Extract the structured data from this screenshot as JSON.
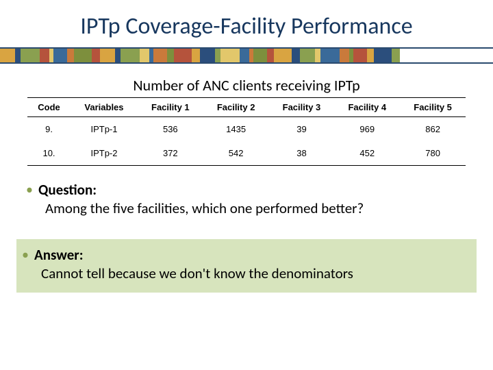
{
  "title": "IPTp Coverage-Facility Performance",
  "stripe": {
    "border_color": "#2a4a6e",
    "colors": [
      "#d9a441",
      "#2b4e7c",
      "#8aa050",
      "#b5533c",
      "#e2c76b",
      "#3a6a99",
      "#c97a3b",
      "#7d8f3d",
      "#b5533c",
      "#d9a441",
      "#2b4e7c",
      "#8aa050",
      "#e2c76b",
      "#3a6a99",
      "#c97a3b",
      "#7d8f3d",
      "#b5533c",
      "#d9a441",
      "#2b4e7c",
      "#8aa050",
      "#e2c76b",
      "#3a6a99",
      "#c97a3b",
      "#7d8f3d",
      "#b5533c",
      "#d9a441",
      "#2b4e7c",
      "#8aa050",
      "#e2c76b",
      "#3a6a99",
      "#c97a3b",
      "#7d8f3d",
      "#b5533c",
      "#d9a441",
      "#2b4e7c",
      "#8aa050"
    ],
    "widths": [
      22,
      8,
      28,
      14,
      6,
      20,
      10,
      26,
      12,
      22,
      8,
      28,
      14,
      6,
      20,
      10,
      26,
      12,
      22,
      8,
      28,
      14,
      6,
      20,
      10,
      26,
      12,
      22,
      8,
      28,
      14,
      6,
      20,
      10,
      26,
      12
    ]
  },
  "subtitle": "Number of ANC clients receiving IPTp",
  "table": {
    "columns": [
      "Code",
      "Variables",
      "Facility 1",
      "Facility 2",
      "Facility 3",
      "Facility 4",
      "Facility 5"
    ],
    "rows": [
      [
        "9.",
        "IPTp-1",
        "536",
        "1435",
        "39",
        "969",
        "862"
      ],
      [
        "10.",
        "IPTp-2",
        "372",
        "542",
        "38",
        "452",
        "780"
      ]
    ],
    "header_border_color": "#000000",
    "font_size": 13
  },
  "question": {
    "bullet_color": "#8aa050",
    "label": "Question:",
    "text": "Among the five facilities, which one performed better?"
  },
  "answer": {
    "bullet_color": "#8aa050",
    "background": "#d7e4bd",
    "label": "Answer:",
    "text": "Cannot tell because we don't know the denominators"
  }
}
